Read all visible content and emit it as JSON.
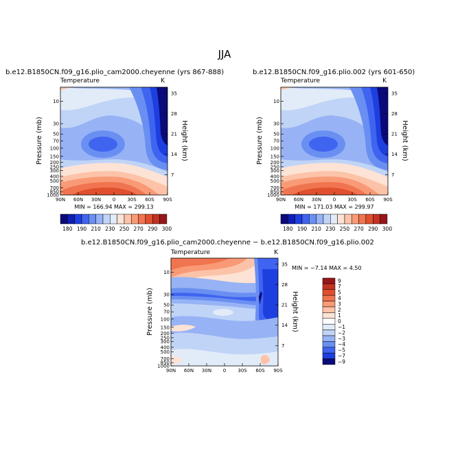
{
  "figure": {
    "title": "JJA"
  },
  "chart_data": [
    {
      "type": "heatmap",
      "title": "b.e12.B1850CN.f09_g16.plio_cam2000.cheyenne (yrs 867-888)",
      "variable_label": "Temperature",
      "units_label": "K",
      "ylabel": "Pressure (mb)",
      "y2label": "Height (km)",
      "x_ticks": [
        "90N",
        "60N",
        "30N",
        "0",
        "30S",
        "60S",
        "90S"
      ],
      "y_ticks": [
        10,
        30,
        50,
        70,
        100,
        150,
        200,
        250,
        300,
        400,
        500,
        700,
        850,
        1000
      ],
      "y2_ticks": [
        35,
        28,
        21,
        14,
        7
      ],
      "ylim": [
        1000,
        5
      ],
      "stats_text": "MIN = 166.94   MAX = 299.13",
      "min": 166.94,
      "max": 299.13,
      "colorbar_labels": [
        "180",
        "190",
        "210",
        "230",
        "250",
        "270",
        "290",
        "300"
      ]
    },
    {
      "type": "heatmap",
      "title": "b.e12.B1850CN.f09_g16.plio.002 (yrs 601-650)",
      "variable_label": "Temperature",
      "units_label": "K",
      "ylabel": "Pressure (mb)",
      "y2label": "Height (km)",
      "x_ticks": [
        "90N",
        "60N",
        "30N",
        "0",
        "30S",
        "60S",
        "90S"
      ],
      "y_ticks": [
        10,
        30,
        50,
        70,
        100,
        150,
        200,
        250,
        300,
        400,
        500,
        700,
        850,
        1000
      ],
      "y2_ticks": [
        35,
        28,
        21,
        14,
        7
      ],
      "ylim": [
        1000,
        5
      ],
      "stats_text": "MIN = 171.03   MAX = 299.97",
      "min": 171.03,
      "max": 299.97,
      "colorbar_labels": [
        "180",
        "190",
        "210",
        "230",
        "250",
        "270",
        "290",
        "300"
      ]
    },
    {
      "type": "heatmap",
      "title": "b.e12.B1850CN.f09_g16.plio_cam2000.cheyenne − b.e12.B1850CN.f09_g16.plio.002",
      "variable_label": "Temperature",
      "units_label": "K",
      "ylabel": "Pressure (mb)",
      "y2label": "Height (km)",
      "x_ticks": [
        "90N",
        "60N",
        "30N",
        "0",
        "30S",
        "60S",
        "90S"
      ],
      "y_ticks": [
        10,
        30,
        50,
        70,
        100,
        150,
        200,
        250,
        300,
        400,
        500,
        700,
        850,
        1000
      ],
      "y2_ticks": [
        35,
        28,
        21,
        14,
        7
      ],
      "ylim": [
        1000,
        5
      ],
      "stats_text": "MIN = −7.14   MAX =   4.50",
      "min": -7.14,
      "max": 4.5,
      "colorbar_labels": [
        "9",
        "7",
        "5",
        "4",
        "3",
        "2",
        "1",
        "0",
        "−1",
        "−2",
        "−3",
        "−4",
        "−5",
        "−7",
        "−9"
      ]
    }
  ],
  "colors": {
    "temp_scale": [
      "#0a0a7a",
      "#0f1fb4",
      "#1e3fe0",
      "#3f64f0",
      "#6a8ff2",
      "#97b3f5",
      "#c0d4f7",
      "#e2ebf8",
      "#fde3d5",
      "#fcc3a8",
      "#f99a76",
      "#f0744f",
      "#e0502e",
      "#c33222",
      "#97161b"
    ],
    "diff_scale": [
      "#97161b",
      "#c33222",
      "#e0502e",
      "#f0744f",
      "#f99a76",
      "#fcc3a8",
      "#fde3d5",
      "#ffffff",
      "#e2ebf8",
      "#c0d4f7",
      "#97b3f5",
      "#6a8ff2",
      "#3f64f0",
      "#1e3fe0",
      "#0a0a7a"
    ]
  }
}
